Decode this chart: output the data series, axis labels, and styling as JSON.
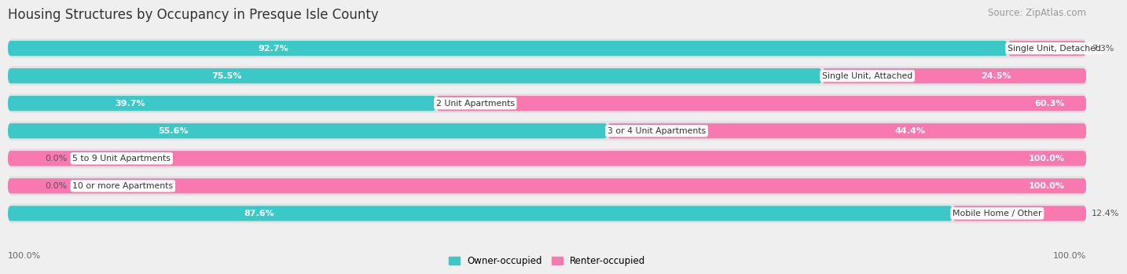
{
  "title": "Housing Structures by Occupancy in Presque Isle County",
  "source": "Source: ZipAtlas.com",
  "categories": [
    "Single Unit, Detached",
    "Single Unit, Attached",
    "2 Unit Apartments",
    "3 or 4 Unit Apartments",
    "5 to 9 Unit Apartments",
    "10 or more Apartments",
    "Mobile Home / Other"
  ],
  "owner_pct": [
    92.7,
    75.5,
    39.7,
    55.6,
    0.0,
    0.0,
    87.6
  ],
  "renter_pct": [
    7.3,
    24.5,
    60.3,
    44.4,
    100.0,
    100.0,
    12.4
  ],
  "owner_color": "#3dc8c8",
  "renter_color": "#f878b0",
  "owner_color_light": "#a0dede",
  "bg_color": "#efefef",
  "row_bg_color": "#e2e2e2",
  "title_fontsize": 12,
  "source_fontsize": 8.5,
  "label_fontsize": 7.8,
  "pct_fontsize": 8.0
}
